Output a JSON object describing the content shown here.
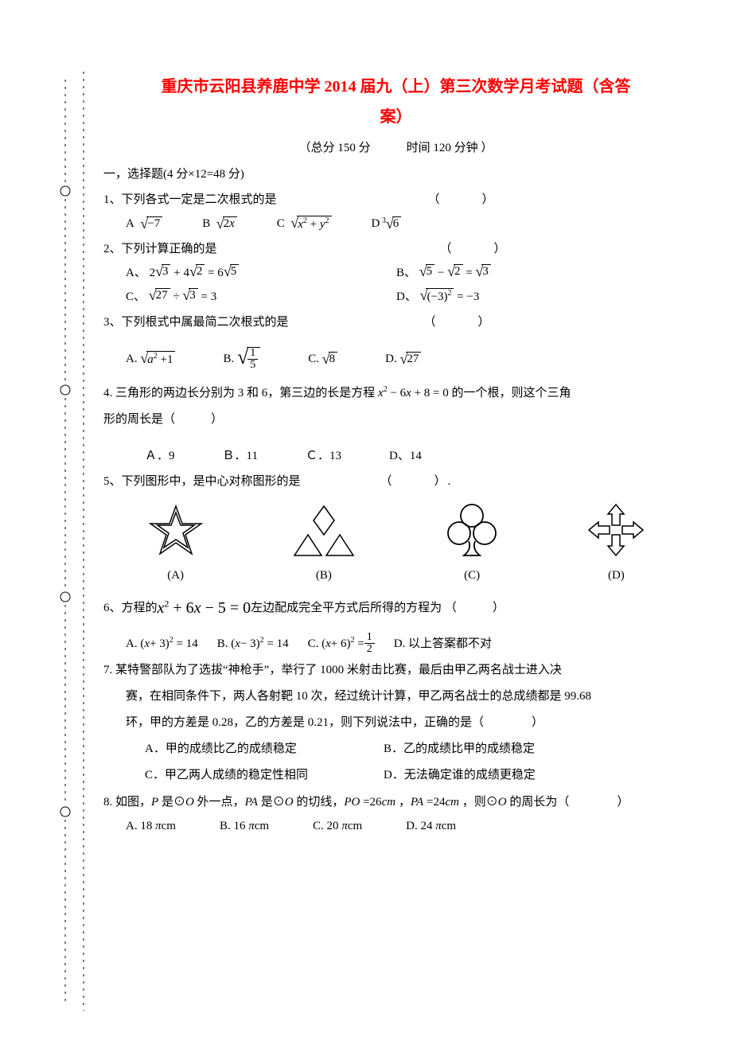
{
  "title_line1": "重庆市云阳县养鹿中学 2014 届九（上）第三次数学月考试题（含答",
  "title_line2": "案）",
  "subtitle": "（总分 150 分　　　时间 120 分钟  ）",
  "section1": "一，选择题(4 分×12=48 分)",
  "q1": {
    "stem": "1、下列各式一定是二次根式的是",
    "paren": "（　　　）",
    "a": "A",
    "a_rad": "−7",
    "b": "B",
    "b_rad_html": "2<span class='math'>x</span>",
    "c": "C",
    "c_rad_html": "<span class='math'>x</span><sup>2</sup> + <span class='math'>y</span><sup>2</sup>",
    "d": "D",
    "d_idx": "3",
    "d_rad": "6"
  },
  "q2": {
    "stem": "2、下列计算正确的是",
    "paren": "（　　　）",
    "a_pre": "A、",
    "b_pre": "B、",
    "c_pre": "C、",
    "d_pre": "D、"
  },
  "q3": {
    "stem": "3、下列根式中属最简二次根式的是",
    "paren": "（　　　）",
    "a": "A.",
    "b": "B.",
    "c": "C.",
    "d": "D."
  },
  "q4": {
    "stem_a": "4.  三角形的两边长分别为 3 和 6，第三边的长是方程 ",
    "stem_b": " 的一个根，则这个三角",
    "stem_c": "形的周长是（　　　）",
    "a": "Ａ．9",
    "b": "Ｂ．11",
    "c": "Ｃ．13",
    "d": "D、14"
  },
  "q5": {
    "stem": "5、下列图形中，是中心对称图形的是",
    "paren": "（　　　）.",
    "labels": [
      "(A)",
      "(B)",
      "(C)",
      "(D)"
    ]
  },
  "q6": {
    "stem_a": "6、方程的 ",
    "stem_b": " 左边配成完全平方式后所得的方程为  （　　　）",
    "a": "A.",
    "b": "B.",
    "c": "C.",
    "d": "D.  以上答案都不对"
  },
  "q7": {
    "l1": "7. 某特警部队为了选拔“神枪手”，举行了 1000 米射击比赛，最后由甲乙两名战士进入决",
    "l2": "赛，在相同条件下，两人各射靶 10 次，经过统计计算，甲乙两名战士的总成绩都是 99.68",
    "l3": "环，甲的方差是 0.28，乙的方差是 0.21，则下列说法中，正确的是（　　　　）",
    "a": "A．甲的成绩比乙的成绩稳定",
    "b": "B．乙的成绩比甲的成绩稳定",
    "c": "C．甲乙两人成绩的稳定性相同",
    "d": "D．无法确定谁的成绩更稳定"
  },
  "q8": {
    "stem_a": "8. 如图，",
    "stem_b": " 是⊙",
    "stem_c": " 外一点，",
    "stem_d": " 是⊙",
    "stem_e": " 的切线，",
    "stem_f": "=26",
    "stem_g": "，",
    "stem_h": "=24",
    "stem_i": "，则⊙",
    "stem_j": " 的周长为（　　　　）",
    "a_pre": "A.  18",
    "b_pre": "B.  16",
    "c_pre": "C.  20",
    "d_pre": "D.  24",
    "unit": " cm"
  },
  "colors": {
    "title": "#ff0000",
    "text": "#000000",
    "bg": "#ffffff"
  }
}
